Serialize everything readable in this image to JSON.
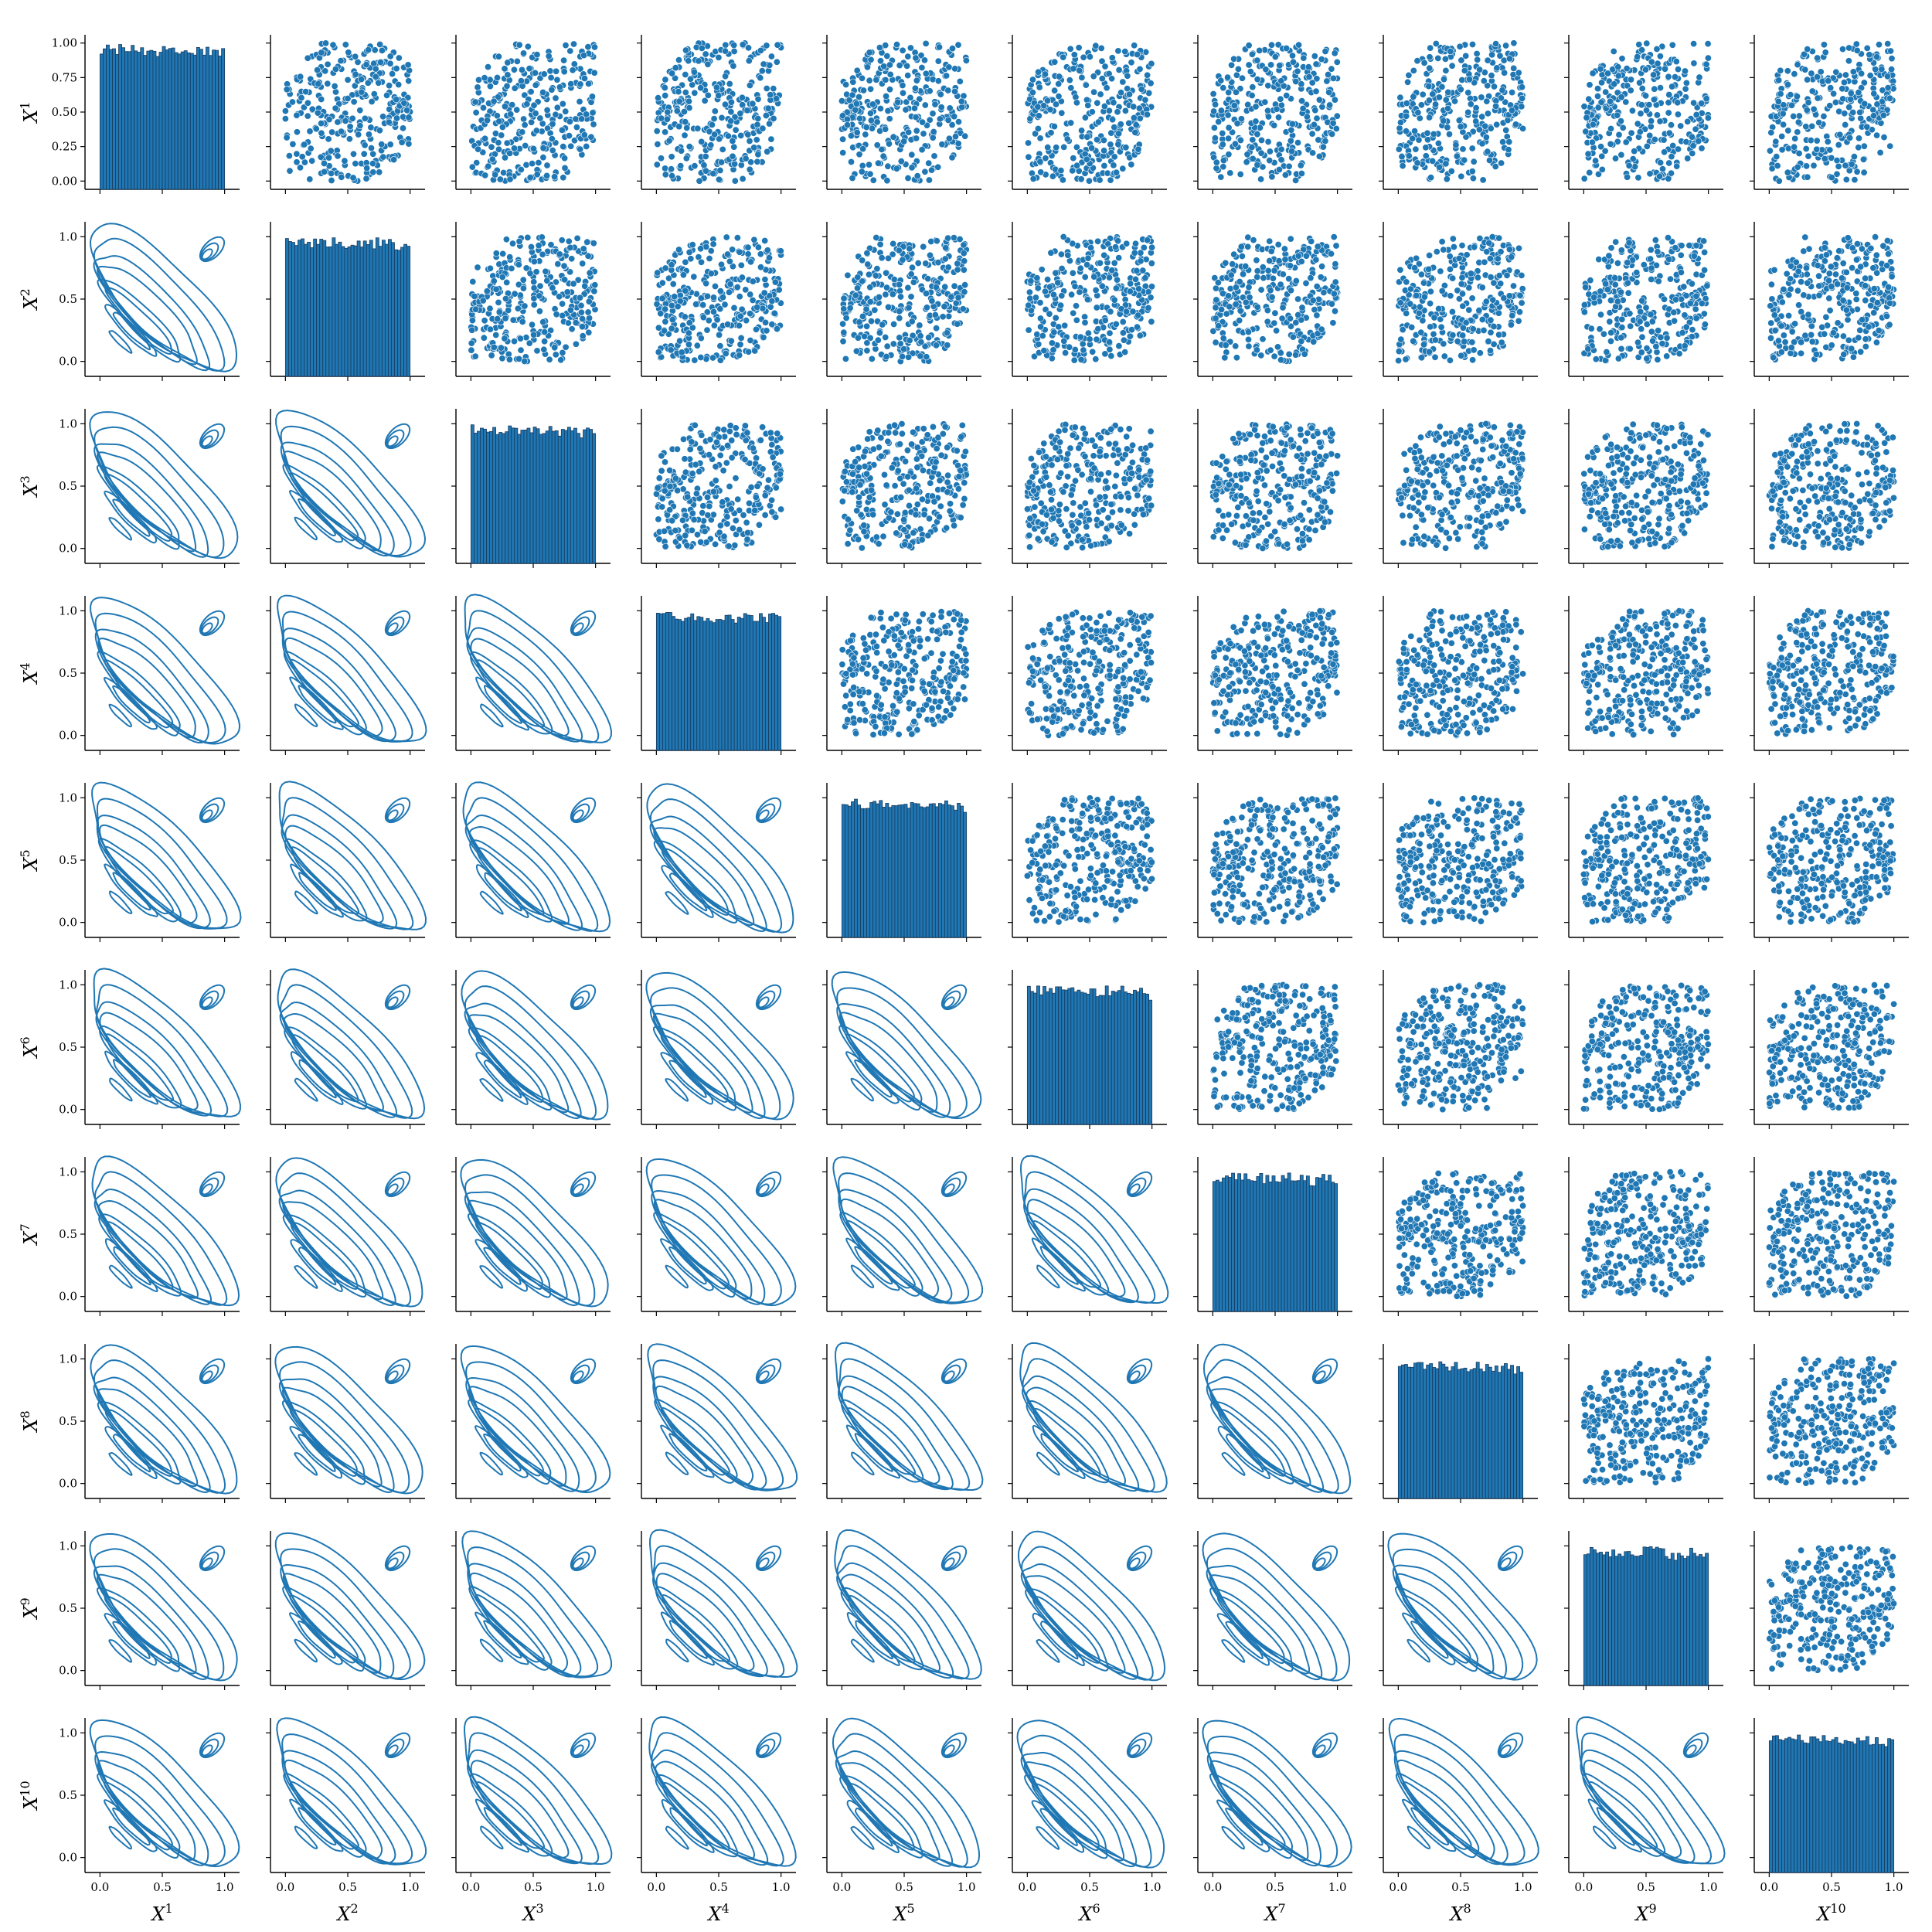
{
  "chart_data": {
    "type": "pairplot",
    "variables": [
      "X1",
      "X2",
      "X3",
      "X4",
      "X5",
      "X6",
      "X7",
      "X8",
      "X9",
      "X10"
    ],
    "variable_labels": [
      {
        "base": "X",
        "sup": "1"
      },
      {
        "base": "X",
        "sup": "2"
      },
      {
        "base": "X",
        "sup": "3"
      },
      {
        "base": "X",
        "sup": "4"
      },
      {
        "base": "X",
        "sup": "5"
      },
      {
        "base": "X",
        "sup": "6"
      },
      {
        "base": "X",
        "sup": "7"
      },
      {
        "base": "X",
        "sup": "8"
      },
      {
        "base": "X",
        "sup": "9"
      },
      {
        "base": "X",
        "sup": "10"
      }
    ],
    "diagonal": {
      "type": "histogram",
      "bin_count": 40,
      "marginal_distribution": "uniform on [0, 1]"
    },
    "upper_triangle": {
      "type": "scatter",
      "x_range": [
        0,
        1
      ],
      "y_range": [
        0,
        1
      ]
    },
    "lower_triangle": {
      "type": "kde_contour",
      "levels": 9,
      "dependence": "positive"
    },
    "x_ticks": [
      0.0,
      0.5,
      1.0
    ],
    "x_tick_labels": [
      "0.0",
      "0.5",
      "1.0"
    ],
    "y_ticks_first_row": [
      0.0,
      0.25,
      0.5,
      0.75,
      1.0
    ],
    "y_tick_labels_first_row": [
      "0.00",
      "0.25",
      "0.50",
      "0.75",
      "1.00"
    ],
    "y_ticks_other_rows": [
      0.0,
      0.5,
      1.0
    ],
    "y_tick_labels_other_rows": [
      "0.0",
      "0.5",
      "1.0"
    ],
    "xlim": [
      -0.12,
      1.12
    ],
    "ylim_first_row": [
      -0.06,
      1.06
    ],
    "ylim_other_rows": [
      -0.12,
      1.12
    ],
    "colors": {
      "mark": "#1f77b4",
      "mark_edge": "#ffffff",
      "bar_edge": "#1a3a5c",
      "axis": "#000000"
    }
  }
}
